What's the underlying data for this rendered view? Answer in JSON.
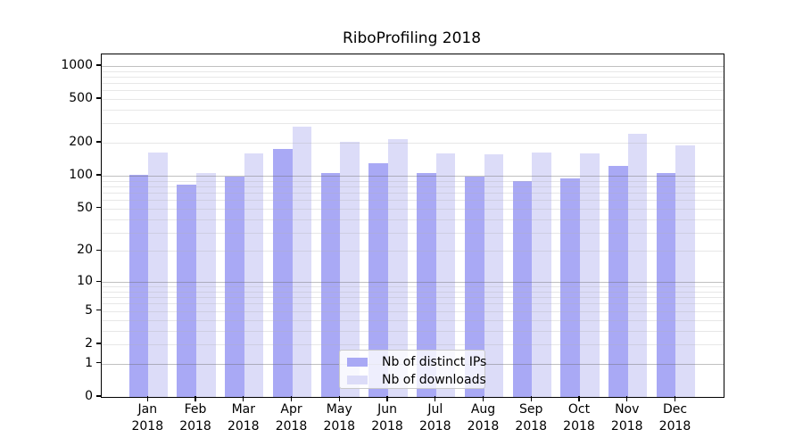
{
  "title": "RiboProfiling 2018",
  "chart_data": {
    "type": "bar",
    "title": "RiboProfiling 2018",
    "categories": [
      "Jan",
      "Feb",
      "Mar",
      "Apr",
      "May",
      "Jun",
      "Jul",
      "Aug",
      "Sep",
      "Oct",
      "Nov",
      "Dec"
    ],
    "category_year": "2018",
    "series": [
      {
        "name": "Nb of distinct IPs",
        "color": "#a9a9f5",
        "values": [
          103,
          83,
          99,
          177,
          105,
          130,
          106,
          99,
          90,
          95,
          122,
          105
        ]
      },
      {
        "name": "Nb of downloads",
        "color": "#dcdcf8",
        "values": [
          163,
          105,
          160,
          281,
          204,
          215,
          160,
          158,
          162,
          160,
          240,
          191
        ]
      }
    ],
    "xlabel": "",
    "ylabel": "",
    "yscale": "log1p",
    "yticks": [
      0,
      1,
      2,
      5,
      10,
      20,
      50,
      100,
      200,
      500,
      1000
    ],
    "ytick_major_gridlines": [
      1,
      10,
      100,
      1000
    ],
    "ytick_minor_gridlines": [
      2,
      3,
      4,
      5,
      6,
      7,
      8,
      9,
      20,
      30,
      40,
      50,
      60,
      70,
      80,
      90,
      200,
      300,
      400,
      500,
      600,
      700,
      800,
      900
    ],
    "ylim": [
      0,
      1270
    ],
    "grid": "on",
    "legend_position": "lower center"
  }
}
